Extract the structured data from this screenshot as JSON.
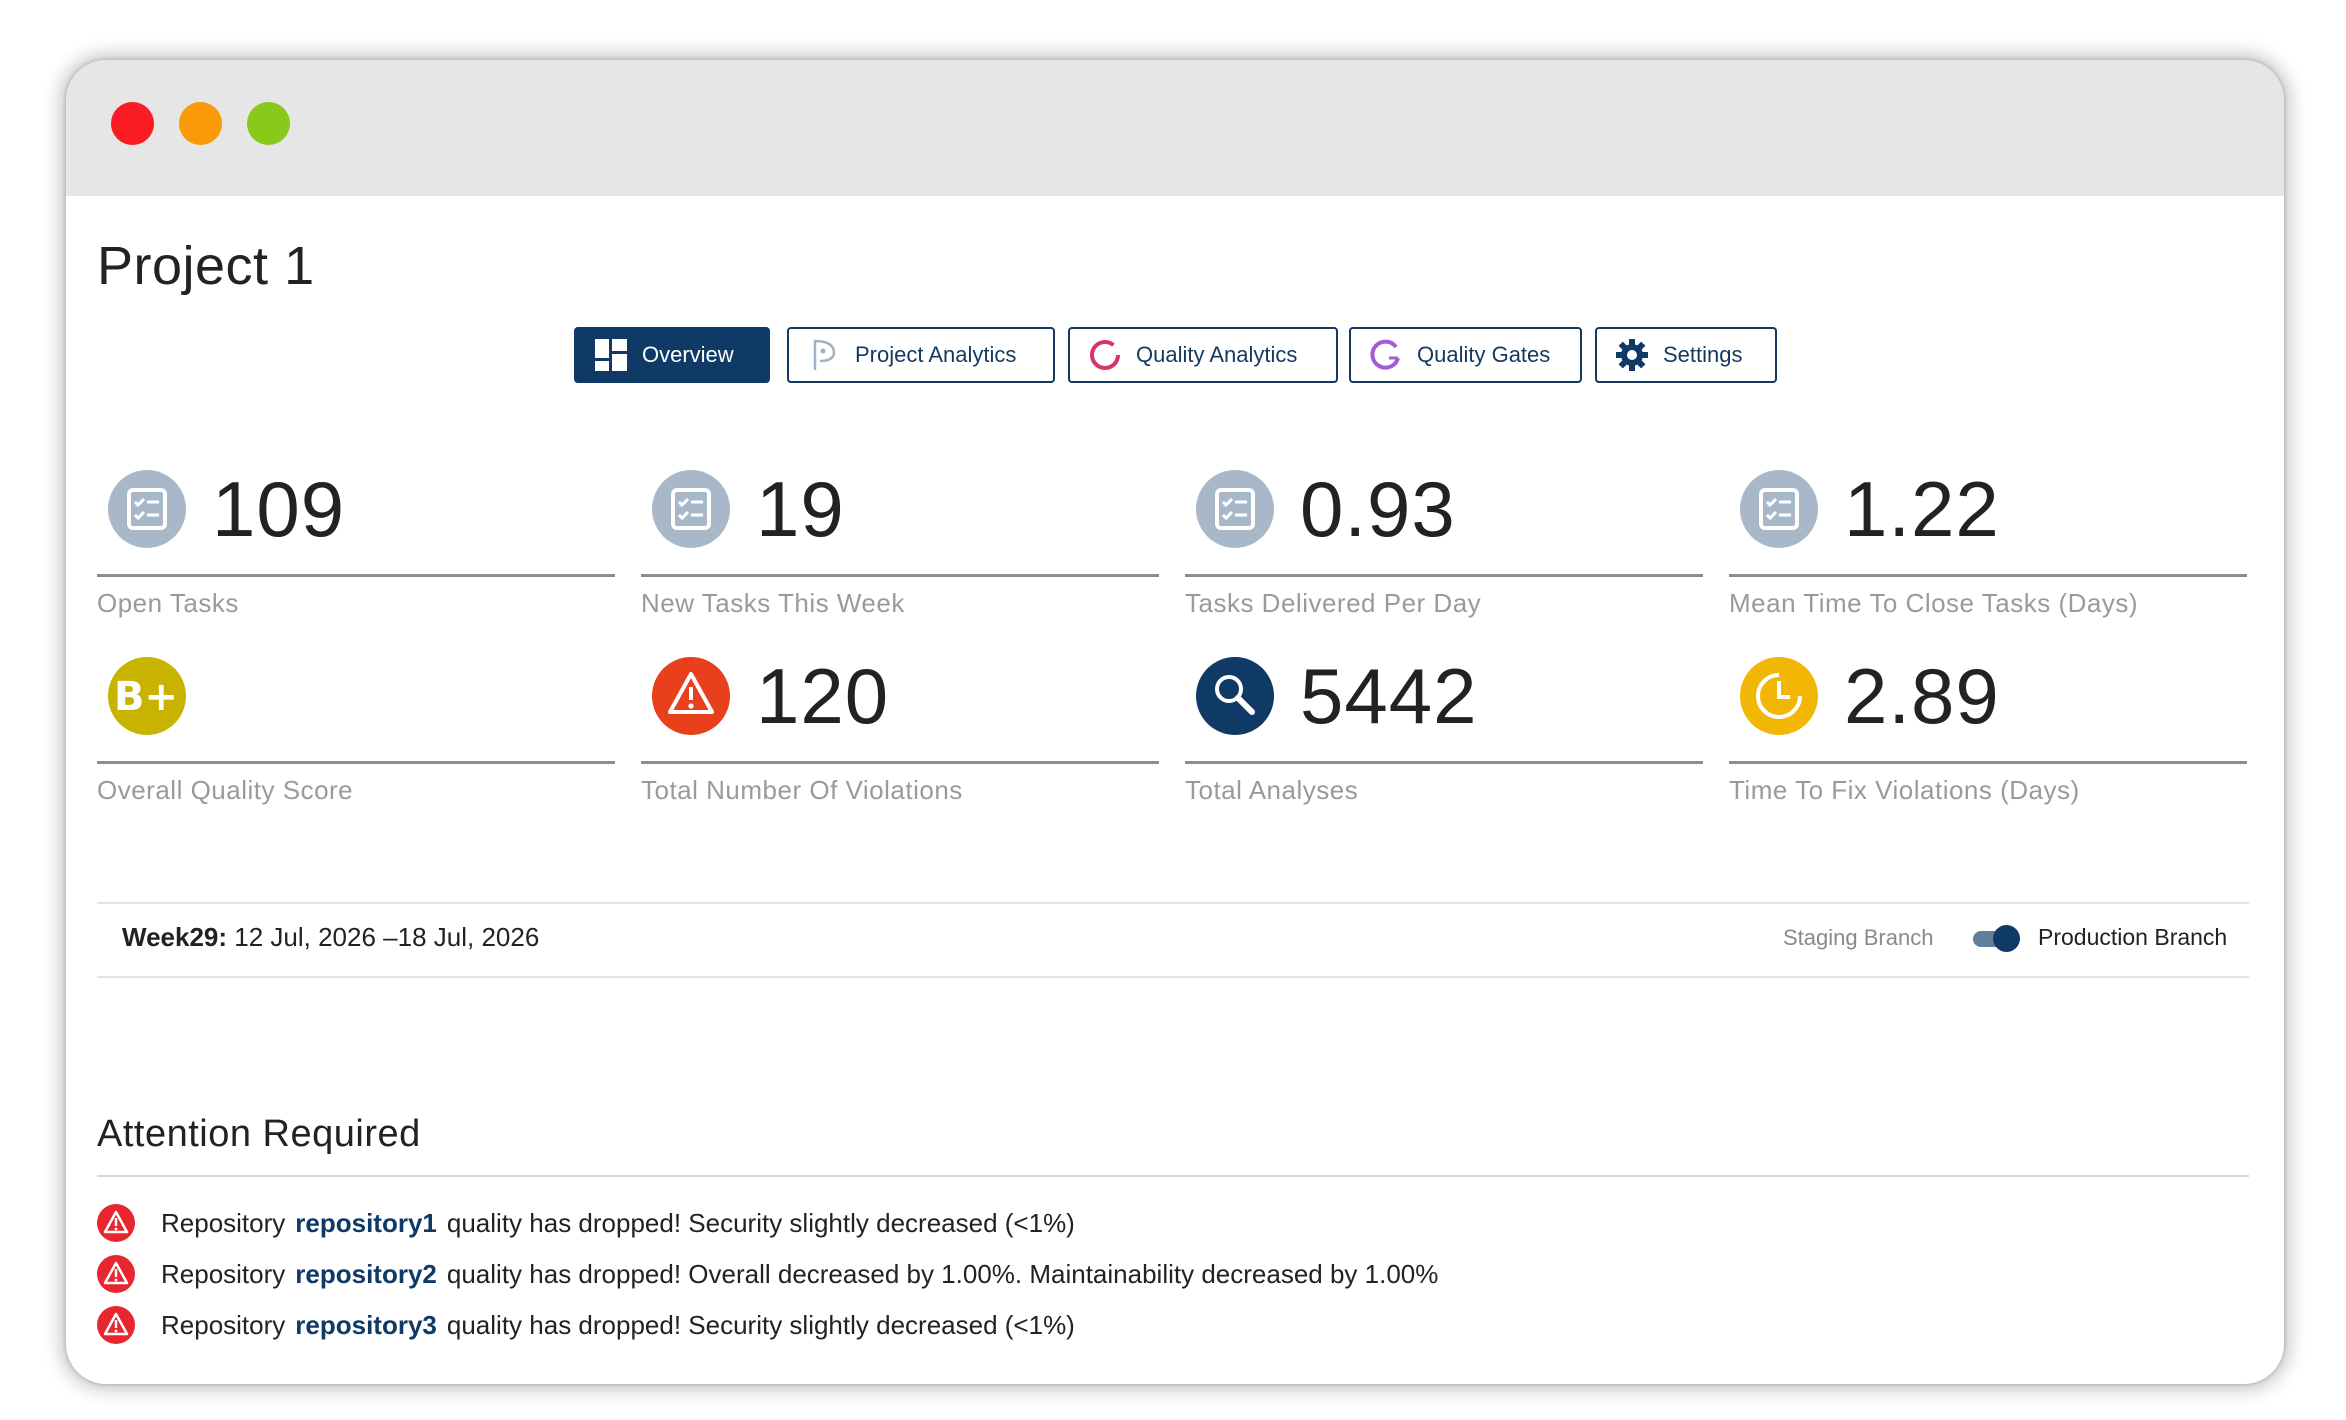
{
  "project": {
    "title": "Project 1"
  },
  "tabs": [
    {
      "label": "Overview",
      "icon": "grid-dashboard-icon",
      "active": true
    },
    {
      "label": "Project Analytics",
      "icon": "project-analytics-icon",
      "active": false
    },
    {
      "label": "Quality Analytics",
      "icon": "quality-analytics-ring-icon",
      "active": false
    },
    {
      "label": "Quality Gates",
      "icon": "quality-gates-ring-icon",
      "active": false
    },
    {
      "label": "Settings",
      "icon": "gear-icon",
      "active": false
    }
  ],
  "metrics": [
    {
      "value": "109",
      "label": "Open Tasks",
      "icon": "checklist-icon"
    },
    {
      "value": "19",
      "label": "New Tasks This Week",
      "icon": "checklist-icon"
    },
    {
      "value": "0.93",
      "label": "Tasks Delivered Per Day",
      "icon": "checklist-icon"
    },
    {
      "value": "1.22",
      "label": "Mean Time To Close Tasks (Days)",
      "icon": "checklist-icon"
    },
    {
      "value": "",
      "grade": "B+",
      "label": "Overall Quality Score",
      "icon": "grade-badge-icon"
    },
    {
      "value": "120",
      "label": "Total Number Of Violations",
      "icon": "warning-triangle-icon"
    },
    {
      "value": "5442",
      "label": "Total Analyses",
      "icon": "magnifier-icon"
    },
    {
      "value": "2.89",
      "label": "Time To Fix Violations (Days)",
      "icon": "clock-icon"
    }
  ],
  "week": {
    "label": "Week29:",
    "range": "12 Jul, 2026 –18 Jul, 2026"
  },
  "branch": {
    "staging_label": "Staging Branch",
    "production_label": "Production Branch",
    "selected": "Production Branch"
  },
  "attention": {
    "title": "Attention Required",
    "items": [
      {
        "prefix": "Repository",
        "repo": "repository1",
        "message": "quality has dropped! Security slightly decreased (<1%)"
      },
      {
        "prefix": "Repository",
        "repo": "repository2",
        "message": "quality has dropped! Overall decreased by 1.00%. Maintainability decreased by 1.00%"
      },
      {
        "prefix": "Repository",
        "repo": "repository3",
        "message": "quality has dropped! Security slightly decreased (<1%)"
      }
    ]
  },
  "colors": {
    "brand_navy": "#0f3a66",
    "icon_grey": "#a9b8c8",
    "grade_olive": "#c8b400",
    "violation_orange": "#e8401c",
    "clock_yellow": "#f2b705",
    "alert_red": "#e8262f"
  }
}
